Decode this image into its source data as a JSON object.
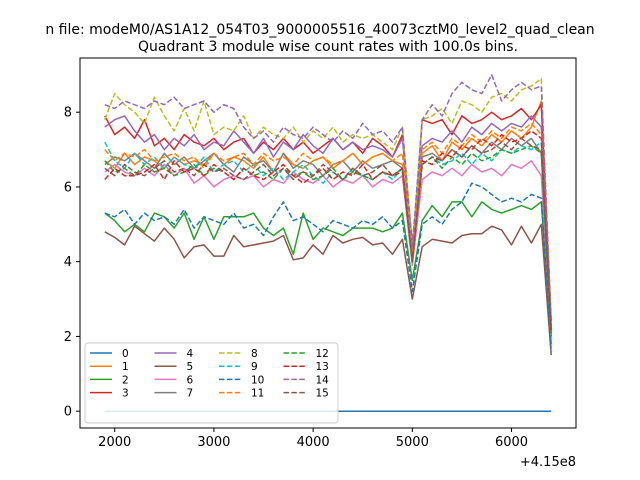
{
  "chart_data": {
    "type": "line",
    "suptitle": "n file: modeM0/AS1A12_054T03_9000005516_40073cztM0_level2_quad_clean",
    "title": "Quadrant 3 module wise count rates with 100.0s bins.",
    "xlabel": "",
    "ylabel": "",
    "x_offset_label": "+4.15e8",
    "xlim": [
      1650,
      6650
    ],
    "ylim": [
      -0.45,
      9.45
    ],
    "xticks": [
      2000,
      3000,
      4000,
      5000,
      6000
    ],
    "yticks": [
      0,
      2,
      4,
      6,
      8
    ],
    "grid": false,
    "legend_location": "lower left",
    "legend_columns": 4,
    "x": [
      1900,
      2000,
      2100,
      2200,
      2300,
      2400,
      2500,
      2600,
      2700,
      2800,
      2900,
      3000,
      3100,
      3200,
      3300,
      3400,
      3500,
      3600,
      3700,
      3800,
      3900,
      4000,
      4100,
      4200,
      4300,
      4400,
      4500,
      4600,
      4700,
      4800,
      4900,
      5000,
      5100,
      5200,
      5300,
      5400,
      5500,
      5600,
      5700,
      5800,
      5900,
      6000,
      6100,
      6200,
      6300,
      6400
    ],
    "series": [
      {
        "name": "0",
        "color": "#1f77b4",
        "dash": "solid",
        "values": [
          0,
          0,
          0,
          0,
          0,
          0,
          0,
          0,
          0,
          0,
          0,
          0,
          0,
          0,
          0,
          0,
          0,
          0,
          0,
          0,
          0,
          0,
          0,
          0,
          0,
          0,
          0,
          0,
          0,
          0,
          0,
          0,
          0,
          0,
          0,
          0,
          0,
          0,
          0,
          0,
          0,
          0,
          0,
          0,
          0,
          0
        ]
      },
      {
        "name": "1",
        "color": "#ff7f0e",
        "dash": "solid",
        "values": [
          6.7,
          6.5,
          6.9,
          6.6,
          6.8,
          6.7,
          6.5,
          6.8,
          6.6,
          6.7,
          6.6,
          6.9,
          6.6,
          6.8,
          6.7,
          6.5,
          6.8,
          6.4,
          6.9,
          6.6,
          6.5,
          6.7,
          6.8,
          6.5,
          6.7,
          6.9,
          6.6,
          6.8,
          6.9,
          6.7,
          6.6,
          4.1,
          6.9,
          7.1,
          6.7,
          7.2,
          7.0,
          7.3,
          7.1,
          7.4,
          7.2,
          7.5,
          7.3,
          7.6,
          8.3,
          2.4
        ]
      },
      {
        "name": "2",
        "color": "#2ca02c",
        "dash": "solid",
        "values": [
          5.3,
          5.1,
          4.8,
          5.0,
          4.8,
          5.3,
          5.2,
          4.9,
          5.3,
          4.6,
          5.2,
          4.6,
          5.2,
          5.2,
          5.2,
          5.3,
          4.9,
          4.7,
          4.9,
          4.2,
          5.3,
          4.6,
          4.9,
          4.8,
          4.7,
          4.9,
          4.9,
          4.9,
          4.8,
          4.9,
          5.3,
          3.5,
          5.1,
          5.5,
          5.2,
          5.6,
          5.6,
          5.2,
          5.6,
          5.4,
          5.3,
          5.4,
          5.5,
          5.4,
          5.6,
          1.8
        ]
      },
      {
        "name": "3",
        "color": "#d62728",
        "dash": "solid",
        "values": [
          7.9,
          7.4,
          7.6,
          7.3,
          7.8,
          7.1,
          7.3,
          7.0,
          7.4,
          7.2,
          7.1,
          7.3,
          7.0,
          7.2,
          7.3,
          6.9,
          7.2,
          7.0,
          7.3,
          7.0,
          7.2,
          6.9,
          7.1,
          7.3,
          7.0,
          7.2,
          6.9,
          7.3,
          7.1,
          6.8,
          7.4,
          4.0,
          7.8,
          7.7,
          7.8,
          7.4,
          7.9,
          7.7,
          7.8,
          8.0,
          7.8,
          7.9,
          8.1,
          7.8,
          8.2,
          2.2
        ]
      },
      {
        "name": "4",
        "color": "#9467bd",
        "dash": "solid",
        "values": [
          7.6,
          7.8,
          7.9,
          7.5,
          7.2,
          7.4,
          7.0,
          7.3,
          7.1,
          7.4,
          7.0,
          7.2,
          7.1,
          7.5,
          7.2,
          6.9,
          7.3,
          6.8,
          7.2,
          7.0,
          7.4,
          7.1,
          6.9,
          7.3,
          7.0,
          7.2,
          7.0,
          7.1,
          7.0,
          6.8,
          7.3,
          4.5,
          7.1,
          7.3,
          7.2,
          7.5,
          7.2,
          7.6,
          7.4,
          7.7,
          7.5,
          7.7,
          7.6,
          7.9,
          7.6,
          2.1
        ]
      },
      {
        "name": "5",
        "color": "#8c564b",
        "dash": "solid",
        "values": [
          4.8,
          4.65,
          4.45,
          4.95,
          4.75,
          4.55,
          4.9,
          4.6,
          4.1,
          4.4,
          4.45,
          4.15,
          4.15,
          4.7,
          4.4,
          4.45,
          4.5,
          4.55,
          4.7,
          4.05,
          4.1,
          4.45,
          4.2,
          4.7,
          4.5,
          4.6,
          4.65,
          4.45,
          4.5,
          4.2,
          4.6,
          3.0,
          4.4,
          4.6,
          4.55,
          4.5,
          4.7,
          4.75,
          4.75,
          4.95,
          4.85,
          4.45,
          4.95,
          4.5,
          5.0,
          1.5
        ]
      },
      {
        "name": "6",
        "color": "#e377c2",
        "dash": "solid",
        "values": [
          6.4,
          6.6,
          6.4,
          6.3,
          6.5,
          6.3,
          6.6,
          6.3,
          6.5,
          6.1,
          6.3,
          6.0,
          6.2,
          6.3,
          6.2,
          6.3,
          6.0,
          6.2,
          6.1,
          6.4,
          6.2,
          6.1,
          6.3,
          6.0,
          6.2,
          6.1,
          6.3,
          6.0,
          6.2,
          6.1,
          6.3,
          3.9,
          6.2,
          6.4,
          6.3,
          6.5,
          6.3,
          6.6,
          6.4,
          6.5,
          6.3,
          6.6,
          6.5,
          6.7,
          6.3,
          2.0
        ]
      },
      {
        "name": "7",
        "color": "#7f7f7f",
        "dash": "solid",
        "values": [
          6.6,
          6.8,
          6.7,
          6.9,
          6.7,
          6.5,
          6.9,
          6.6,
          6.8,
          6.5,
          6.7,
          6.9,
          6.6,
          6.4,
          6.8,
          6.6,
          6.7,
          6.4,
          6.9,
          6.5,
          6.7,
          6.6,
          6.3,
          6.6,
          6.7,
          6.4,
          6.7,
          6.5,
          6.6,
          6.7,
          6.5,
          4.2,
          6.8,
          6.9,
          6.7,
          7.0,
          6.8,
          7.1,
          6.9,
          7.2,
          7.0,
          7.3,
          7.1,
          7.3,
          6.9,
          2.0
        ]
      },
      {
        "name": "8",
        "color": "#bcbd22",
        "dash": "dashed",
        "values": [
          7.8,
          8.5,
          8.2,
          8.0,
          7.7,
          8.4,
          7.9,
          7.5,
          8.1,
          7.5,
          8.3,
          7.4,
          7.6,
          7.5,
          7.9,
          7.3,
          7.6,
          7.4,
          7.3,
          7.6,
          7.2,
          7.5,
          7.3,
          7.6,
          7.2,
          7.4,
          7.3,
          7.4,
          7.2,
          7.0,
          7.6,
          4.3,
          7.8,
          7.9,
          8.1,
          7.7,
          8.3,
          8.2,
          8.0,
          8.4,
          8.5,
          8.3,
          8.6,
          8.7,
          8.9,
          2.2
        ]
      },
      {
        "name": "9",
        "color": "#17becf",
        "dash": "dashed",
        "values": [
          7.2,
          6.7,
          6.5,
          6.9,
          6.6,
          6.8,
          6.5,
          6.8,
          6.6,
          6.5,
          6.8,
          6.4,
          6.6,
          6.7,
          6.4,
          6.6,
          6.3,
          6.5,
          6.2,
          6.4,
          6.6,
          6.3,
          6.1,
          6.4,
          6.2,
          6.5,
          6.3,
          6.2,
          6.4,
          6.2,
          6.5,
          4.1,
          6.6,
          6.8,
          6.6,
          6.7,
          6.9,
          6.6,
          6.9,
          6.7,
          7.0,
          6.9,
          7.1,
          7.0,
          7.2,
          2.3
        ]
      },
      {
        "name": "10",
        "color": "#1f77b4",
        "dash": "dashed",
        "values": [
          5.3,
          5.2,
          5.4,
          5.0,
          5.3,
          5.1,
          5.2,
          5.0,
          5.4,
          4.9,
          5.2,
          5.1,
          5.0,
          5.3,
          4.9,
          5.0,
          4.7,
          5.2,
          5.6,
          5.1,
          5.2,
          5.0,
          4.8,
          5.1,
          5.0,
          4.9,
          5.1,
          5.0,
          5.2,
          4.9,
          5.1,
          3.2,
          5.0,
          5.2,
          5.0,
          5.4,
          5.6,
          6.1,
          6.0,
          5.8,
          5.6,
          5.7,
          5.6,
          5.8,
          5.7,
          1.6
        ]
      },
      {
        "name": "11",
        "color": "#ff7f0e",
        "dash": "dashed",
        "values": [
          7.0,
          6.7,
          6.9,
          6.8,
          7.0,
          6.7,
          6.8,
          6.9,
          6.7,
          6.8,
          6.5,
          6.9,
          6.7,
          6.8,
          6.9,
          6.6,
          6.9,
          6.7,
          6.8,
          6.6,
          6.9,
          6.7,
          6.8,
          6.6,
          6.7,
          6.9,
          6.6,
          6.8,
          6.9,
          6.7,
          6.9,
          4.1,
          7.0,
          7.2,
          6.9,
          7.3,
          7.1,
          7.4,
          7.2,
          7.5,
          7.3,
          7.6,
          7.5,
          7.7,
          7.4,
          2.1
        ]
      },
      {
        "name": "12",
        "color": "#2ca02c",
        "dash": "dashed",
        "values": [
          6.7,
          6.4,
          6.5,
          6.3,
          6.6,
          6.4,
          6.5,
          6.3,
          6.4,
          6.6,
          6.3,
          6.5,
          6.4,
          6.2,
          6.5,
          6.3,
          6.4,
          6.2,
          6.5,
          6.3,
          6.4,
          6.2,
          6.3,
          6.5,
          6.2,
          6.4,
          6.3,
          6.2,
          6.4,
          6.3,
          6.5,
          4.0,
          6.6,
          6.8,
          6.5,
          6.8,
          6.6,
          6.9,
          6.7,
          6.8,
          7.0,
          6.9,
          7.0,
          7.1,
          6.9,
          2.0
        ]
      },
      {
        "name": "13",
        "color": "#d62728",
        "dash": "dashed",
        "values": [
          6.2,
          6.5,
          6.3,
          6.3,
          6.4,
          6.6,
          6.2,
          6.7,
          6.4,
          6.5,
          6.3,
          6.6,
          6.4,
          6.2,
          6.5,
          6.3,
          6.2,
          6.4,
          6.6,
          6.3,
          6.1,
          6.3,
          6.5,
          6.2,
          6.4,
          6.3,
          6.6,
          6.2,
          6.4,
          6.3,
          6.5,
          4.0,
          6.7,
          6.6,
          6.9,
          6.8,
          7.1,
          7.0,
          7.3,
          7.1,
          7.4,
          7.2,
          7.3,
          7.5,
          7.3,
          2.1
        ]
      },
      {
        "name": "14",
        "color": "#9467bd",
        "dash": "dashed",
        "values": [
          8.2,
          8.1,
          8.3,
          8.2,
          8.1,
          8.3,
          8.2,
          8.4,
          8.1,
          8.2,
          8.3,
          8.0,
          8.2,
          8.1,
          7.6,
          7.3,
          7.5,
          7.2,
          7.6,
          7.4,
          7.3,
          7.6,
          7.4,
          7.2,
          7.5,
          7.3,
          7.7,
          7.4,
          7.5,
          7.2,
          7.6,
          4.4,
          7.8,
          8.2,
          7.9,
          8.5,
          8.8,
          8.6,
          8.5,
          9.0,
          8.3,
          8.6,
          8.8,
          8.6,
          8.7,
          2.4
        ]
      },
      {
        "name": "15",
        "color": "#8c564b",
        "dash": "dashed",
        "values": [
          6.5,
          6.3,
          6.6,
          6.4,
          6.3,
          6.5,
          6.7,
          6.4,
          6.5,
          6.3,
          6.6,
          6.4,
          6.5,
          6.3,
          6.2,
          6.4,
          6.6,
          6.3,
          6.5,
          6.2,
          6.4,
          6.3,
          6.6,
          6.4,
          6.2,
          6.5,
          6.3,
          6.4,
          6.6,
          6.3,
          6.4,
          4.0,
          6.6,
          6.8,
          6.7,
          7.0,
          6.8,
          7.1,
          6.9,
          7.0,
          7.2,
          7.0,
          7.3,
          7.1,
          7.0,
          2.2
        ]
      }
    ]
  }
}
